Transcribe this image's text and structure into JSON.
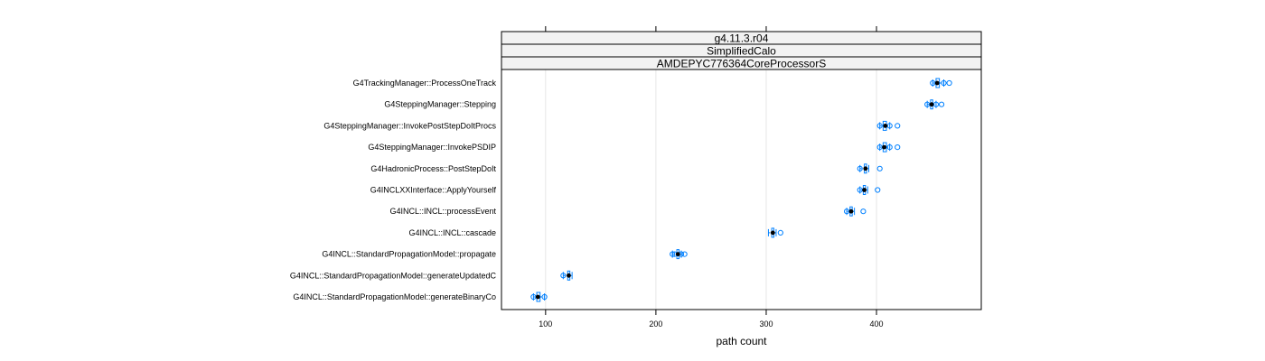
{
  "chart_data": {
    "type": "box",
    "strips": [
      "g4.11.3.r04",
      "SimplifiedCalo",
      "AMDEPYC776364CoreProcessorS"
    ],
    "xlabel": "path count",
    "xlim": [
      60,
      495
    ],
    "xticks": [
      100,
      200,
      300,
      400
    ],
    "grid": true,
    "box_color": "#0080ff",
    "median_color": "#000000",
    "categories": [
      "G4TrackingManager::ProcessOneTrack",
      "G4SteppingManager::Stepping",
      "G4SteppingManager::InvokePostStepDoItProcs",
      "G4SteppingManager::InvokePSDIP",
      "G4HadronicProcess::PostStepDoIt",
      "G4INCLXXInterface::ApplyYourself",
      "G4INCL::INCL::processEvent",
      "G4INCL::INCL::cascade",
      "G4INCL::StandardPropagationModel::propagate",
      "G4INCL::StandardPropagationModel::generateUpdatedC",
      "G4INCL::StandardPropagationModel::generateBinaryCo"
    ],
    "boxes": [
      {
        "min": 451,
        "q1": 454,
        "median": 455,
        "q3": 457,
        "max": 461,
        "outliers": [
          451,
          461,
          466
        ]
      },
      {
        "min": 446,
        "q1": 449,
        "median": 450,
        "q3": 451,
        "max": 454,
        "outliers": [
          446,
          454,
          459
        ]
      },
      {
        "min": 403,
        "q1": 406,
        "median": 408,
        "q3": 409,
        "max": 412,
        "outliers": [
          403,
          412,
          419
        ]
      },
      {
        "min": 403,
        "q1": 406,
        "median": 407,
        "q3": 409,
        "max": 412,
        "outliers": [
          403,
          412,
          419
        ]
      },
      {
        "min": 385,
        "q1": 389,
        "median": 390,
        "q3": 391,
        "max": 393,
        "outliers": [
          385,
          403
        ]
      },
      {
        "min": 385,
        "q1": 388,
        "median": 389,
        "q3": 390,
        "max": 392,
        "outliers": [
          385,
          401
        ]
      },
      {
        "min": 373,
        "q1": 376,
        "median": 377,
        "q3": 378,
        "max": 380,
        "outliers": [
          373,
          388
        ]
      },
      {
        "min": 302,
        "q1": 305,
        "median": 306,
        "q3": 307,
        "max": 309,
        "outliers": [
          313
        ]
      },
      {
        "min": 215,
        "q1": 219,
        "median": 220,
        "q3": 221,
        "max": 223,
        "outliers": [
          215,
          217,
          223,
          226
        ]
      },
      {
        "min": 116,
        "q1": 120,
        "median": 121,
        "q3": 122,
        "max": 124,
        "outliers": [
          116
        ]
      },
      {
        "min": 89,
        "q1": 92,
        "median": 93,
        "q3": 95,
        "max": 99,
        "outliers": [
          89,
          99
        ]
      }
    ]
  }
}
